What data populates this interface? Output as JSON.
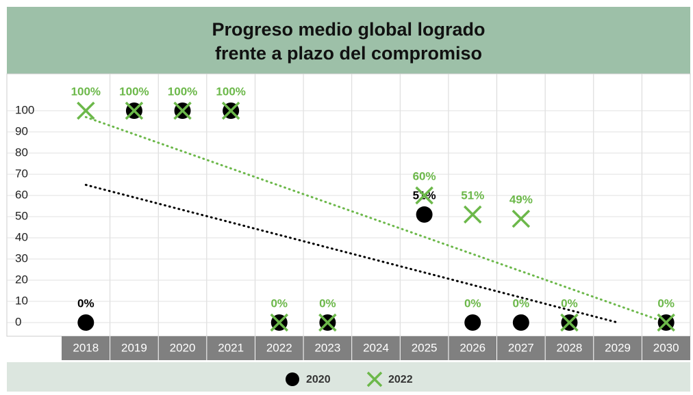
{
  "chart_data": {
    "type": "scatter",
    "title": [
      "Progreso medio global logrado",
      "frente a plazo del compromiso"
    ],
    "categories": [
      "2018",
      "2019",
      "2020",
      "2021",
      "2022",
      "2023",
      "2024",
      "2025",
      "2026",
      "2027",
      "2028",
      "2029",
      "2030"
    ],
    "ylim": [
      0,
      100
    ],
    "yticks": [
      0,
      10,
      20,
      30,
      40,
      50,
      60,
      70,
      80,
      90,
      100
    ],
    "grid": true,
    "legend": "bottom",
    "series": [
      {
        "name": "2020",
        "color": "#000000",
        "marker": "circle",
        "values": [
          0,
          100,
          100,
          100,
          0,
          0,
          null,
          51,
          0,
          0,
          0,
          null,
          0
        ],
        "value_labels": [
          "0%",
          null,
          null,
          null,
          null,
          null,
          null,
          "51%",
          "0%",
          "0%",
          null,
          null,
          null
        ],
        "label_colors": [
          "#000000",
          null,
          null,
          null,
          null,
          null,
          null,
          "#000000",
          "#6cb84a",
          "#6cb84a",
          null,
          null,
          null
        ],
        "trend": {
          "from": "2018",
          "to": "2029",
          "values": [
            65,
            0
          ]
        }
      },
      {
        "name": "2022",
        "color": "#6cb84a",
        "marker": "x",
        "values": [
          100,
          100,
          100,
          100,
          0,
          0,
          null,
          60,
          51,
          49,
          0,
          null,
          0
        ],
        "value_labels": [
          "100%",
          "100%",
          "100%",
          "100%",
          "0%",
          "0%",
          null,
          "60%",
          "51%",
          "49%",
          "0%",
          null,
          "0%"
        ],
        "label_colors": [
          "#6cb84a",
          "#6cb84a",
          "#6cb84a",
          "#6cb84a",
          "#6cb84a",
          "#6cb84a",
          null,
          "#6cb84a",
          "#6cb84a",
          "#6cb84a",
          "#6cb84a",
          null,
          "#6cb84a"
        ],
        "trend": {
          "from": "2018",
          "to": "2030",
          "values": [
            97,
            0
          ]
        }
      }
    ]
  }
}
